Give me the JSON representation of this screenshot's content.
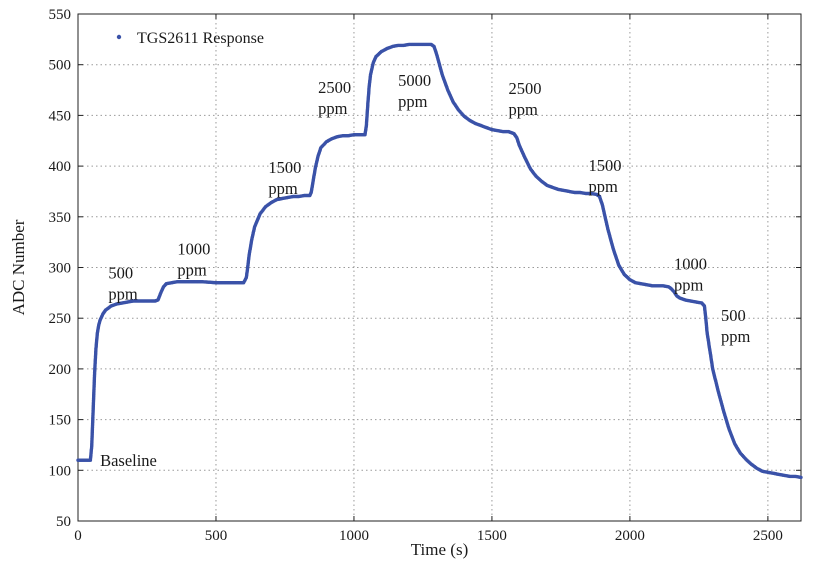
{
  "chart_data": {
    "type": "scatter",
    "xlabel": "Time (s)",
    "ylabel": "ADC Number",
    "xlim": [
      0,
      2620
    ],
    "ylim": [
      50,
      550
    ],
    "x_ticks": [
      0,
      500,
      1000,
      1500,
      2000,
      2500
    ],
    "y_ticks": [
      50,
      100,
      150,
      200,
      250,
      300,
      350,
      400,
      450,
      500,
      550
    ],
    "grid": true,
    "legend_position": "top-left",
    "series": [
      {
        "name": "TGS2611 Response",
        "color": "#3a52a8",
        "marker": "dot",
        "x": [
          0,
          45,
          50,
          55,
          60,
          65,
          70,
          75,
          80,
          90,
          100,
          120,
          140,
          160,
          180,
          200,
          220,
          240,
          260,
          280,
          290,
          300,
          310,
          320,
          340,
          360,
          380,
          400,
          450,
          500,
          550,
          600,
          610,
          615,
          620,
          630,
          640,
          660,
          680,
          700,
          720,
          740,
          760,
          780,
          800,
          820,
          840,
          845,
          850,
          860,
          870,
          880,
          900,
          920,
          940,
          960,
          980,
          1000,
          1020,
          1040,
          1045,
          1050,
          1055,
          1060,
          1070,
          1080,
          1100,
          1120,
          1140,
          1160,
          1180,
          1200,
          1220,
          1240,
          1260,
          1280,
          1290,
          1300,
          1310,
          1320,
          1340,
          1360,
          1380,
          1400,
          1420,
          1440,
          1460,
          1480,
          1500,
          1520,
          1540,
          1560,
          1570,
          1580,
          1590,
          1600,
          1620,
          1640,
          1660,
          1680,
          1700,
          1720,
          1740,
          1760,
          1780,
          1800,
          1820,
          1840,
          1860,
          1880,
          1890,
          1900,
          1910,
          1920,
          1940,
          1960,
          1980,
          2000,
          2020,
          2040,
          2060,
          2080,
          2100,
          2120,
          2140,
          2150,
          2160,
          2170,
          2180,
          2190,
          2200,
          2220,
          2240,
          2260,
          2270,
          2275,
          2280,
          2290,
          2300,
          2320,
          2340,
          2360,
          2380,
          2400,
          2420,
          2440,
          2460,
          2480,
          2500,
          2520,
          2540,
          2560,
          2580,
          2600,
          2620
        ],
        "y": [
          110,
          110,
          125,
          160,
          195,
          220,
          235,
          243,
          248,
          254,
          258,
          262,
          264,
          265,
          266,
          267,
          267,
          267,
          267,
          267,
          268,
          275,
          281,
          284,
          285,
          286,
          286,
          286,
          286,
          285,
          285,
          285,
          290,
          300,
          312,
          328,
          340,
          353,
          360,
          364,
          367,
          368,
          369,
          370,
          370,
          371,
          371,
          374,
          382,
          398,
          410,
          418,
          424,
          427,
          429,
          430,
          430,
          431,
          431,
          431,
          440,
          460,
          478,
          490,
          502,
          508,
          513,
          516,
          518,
          519,
          519,
          520,
          520,
          520,
          520,
          520,
          518,
          510,
          500,
          490,
          475,
          463,
          455,
          449,
          445,
          442,
          440,
          438,
          436,
          435,
          434,
          434,
          433,
          432,
          428,
          420,
          408,
          397,
          390,
          385,
          381,
          379,
          377,
          376,
          375,
          374,
          374,
          373,
          373,
          372,
          370,
          362,
          350,
          338,
          318,
          302,
          293,
          288,
          285,
          284,
          283,
          282,
          282,
          282,
          281,
          279,
          276,
          272,
          270,
          269,
          268,
          267,
          266,
          265,
          262,
          250,
          235,
          218,
          200,
          178,
          158,
          140,
          126,
          117,
          111,
          106,
          102,
          99,
          98,
          97,
          96,
          95,
          94,
          94,
          93
        ]
      }
    ],
    "annotations": [
      {
        "lines": [
          "500",
          "ppm"
        ],
        "x": 110,
        "y": 289
      },
      {
        "lines": [
          "1000",
          "ppm"
        ],
        "x": 360,
        "y": 313
      },
      {
        "lines": [
          "1500",
          "ppm"
        ],
        "x": 690,
        "y": 393
      },
      {
        "lines": [
          "2500",
          "ppm"
        ],
        "x": 870,
        "y": 472
      },
      {
        "lines": [
          "5000",
          "ppm"
        ],
        "x": 1160,
        "y": 479
      },
      {
        "lines": [
          "2500",
          "ppm"
        ],
        "x": 1560,
        "y": 471
      },
      {
        "lines": [
          "1500",
          "ppm"
        ],
        "x": 1850,
        "y": 395
      },
      {
        "lines": [
          "1000",
          "ppm"
        ],
        "x": 2160,
        "y": 298
      },
      {
        "lines": [
          "500",
          "ppm"
        ],
        "x": 2330,
        "y": 247
      },
      {
        "lines": [
          "Baseline"
        ],
        "x": 80,
        "y": 104
      }
    ]
  }
}
